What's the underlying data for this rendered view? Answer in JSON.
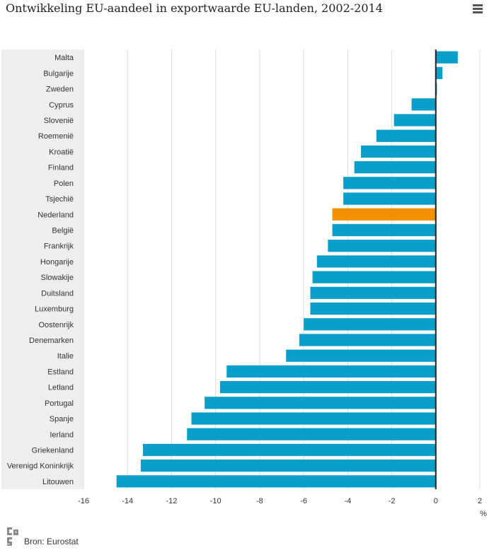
{
  "chart_data": {
    "type": "bar",
    "orientation": "horizontal",
    "title": "Ontwikkeling EU-aandeel in exportwaarde EU-landen, 2002-2014",
    "xlabel": "%",
    "xlim": [
      -16,
      2
    ],
    "xticks": [
      -16,
      -14,
      -12,
      -10,
      -8,
      -6,
      -4,
      -2,
      0,
      2
    ],
    "grid": true,
    "categories": [
      "Malta",
      "Bulgarije",
      "Zweden",
      "Cyprus",
      "Slovenië",
      "Roemenië",
      "Kroatië",
      "Finland",
      "Polen",
      "Tsjechië",
      "Nederland",
      "België",
      "Frankrijk",
      "Hongarije",
      "Slowakije",
      "Duitsland",
      "Luxemburg",
      "Oostenrijk",
      "Denemarken",
      "Italie",
      "Estland",
      "Letland",
      "Portugal",
      "Spanje",
      "Ierland",
      "Griekenland",
      "Verenigd Koninkrijk",
      "Litouwen"
    ],
    "values": [
      1.0,
      0.3,
      0.05,
      -1.1,
      -1.9,
      -2.7,
      -3.4,
      -3.7,
      -4.2,
      -4.2,
      -4.7,
      -4.7,
      -4.9,
      -5.4,
      -5.6,
      -5.7,
      -5.7,
      -6.0,
      -6.2,
      -6.8,
      -9.5,
      -9.8,
      -10.5,
      -11.1,
      -11.3,
      -13.3,
      -13.4,
      -14.5
    ],
    "highlight": "Nederland",
    "colors": {
      "bar": "#0a9fca",
      "highlight": "#f39000",
      "zero_line": "#222222",
      "grid": "#dddddd",
      "label_bg": "#eeeeee"
    }
  },
  "footer": {
    "source": "Bron: Eurostat",
    "logo_icon": "cbs-logo-icon"
  },
  "menu": {
    "icon": "hamburger-menu-icon"
  }
}
